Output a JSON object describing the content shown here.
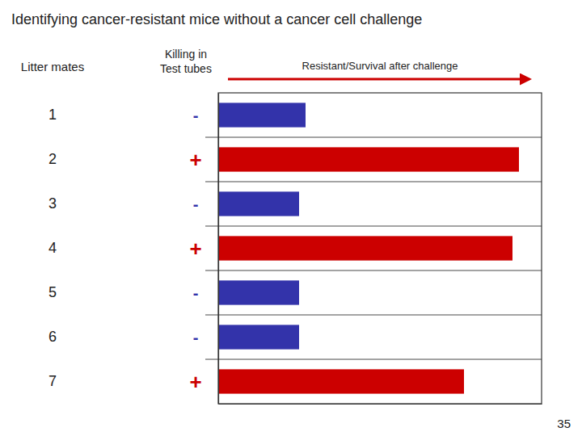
{
  "chart_data": {
    "type": "bar",
    "orientation": "horizontal",
    "title": "Identifying cancer-resistant mice without a cancer cell challenge",
    "ylabel": "Litter mates",
    "xlabel": "Resistant/Survival after challenge",
    "xlabel_color": "#cc0000",
    "categories": [
      "1",
      "2",
      "3",
      "4",
      "5",
      "6",
      "7"
    ],
    "values": [
      0.27,
      0.93,
      0.25,
      0.91,
      0.25,
      0.25,
      0.76
    ],
    "colors": [
      "#3333aa",
      "#cc0000",
      "#3333aa",
      "#cc0000",
      "#3333aa",
      "#3333aa",
      "#cc0000"
    ],
    "signs": {
      "label": "Killing in\nTest tubes",
      "values": [
        "-",
        "+",
        "-",
        "+",
        "-",
        "-",
        "+"
      ]
    },
    "annotations": [
      {
        "text": "35"
      }
    ],
    "xlim": [
      0,
      1
    ],
    "tick_labels": "y",
    "grid": false
  }
}
